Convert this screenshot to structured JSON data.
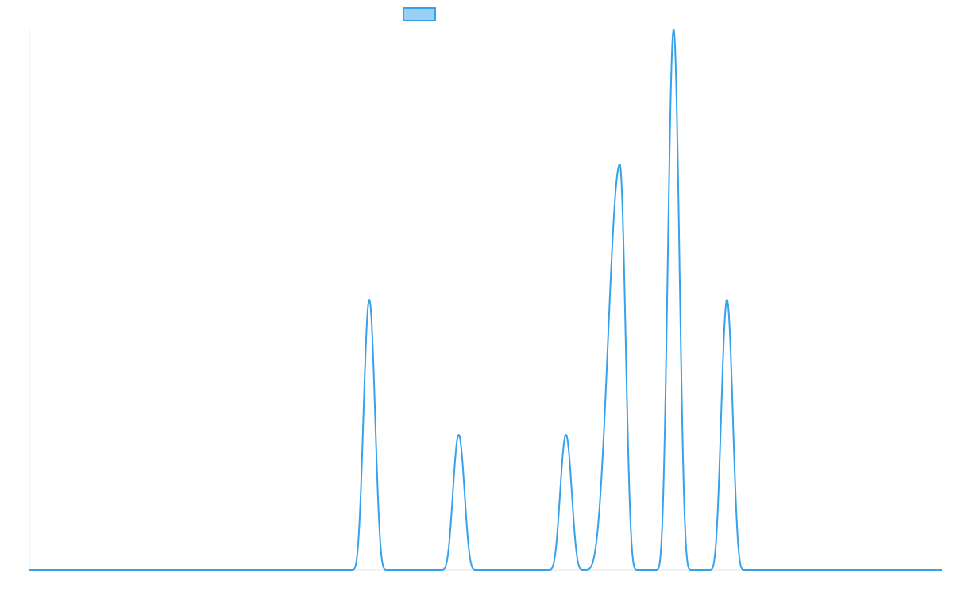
{
  "chart_data": {
    "type": "line",
    "title": "",
    "xlabel": "",
    "ylabel": "",
    "grid": false,
    "legend": {
      "placement": "top-center",
      "entries": [
        {
          "name": ""
        }
      ]
    },
    "xlim": [
      0,
      1
    ],
    "ylim": [
      0,
      1
    ],
    "series": [
      {
        "name": "",
        "peaks": [
          {
            "center": 0.3725,
            "height": 0.5,
            "halfwidth": 0.0195
          },
          {
            "center": 0.4705,
            "height": 0.25,
            "halfwidth": 0.0195
          },
          {
            "center": 0.588,
            "height": 0.25,
            "halfwidth": 0.0195
          },
          {
            "center": 0.647,
            "height": 0.75,
            "halfwidth": 0.0195,
            "left_halfwidth": 0.039
          },
          {
            "center": 0.706,
            "height": 1.0,
            "halfwidth": 0.0195
          },
          {
            "center": 0.7645,
            "height": 0.5,
            "halfwidth": 0.0195
          }
        ]
      }
    ]
  },
  "colors": {
    "line": "#36A2EB",
    "legend_fill": "#9AD0F5",
    "axis": "#E5E5E5"
  }
}
